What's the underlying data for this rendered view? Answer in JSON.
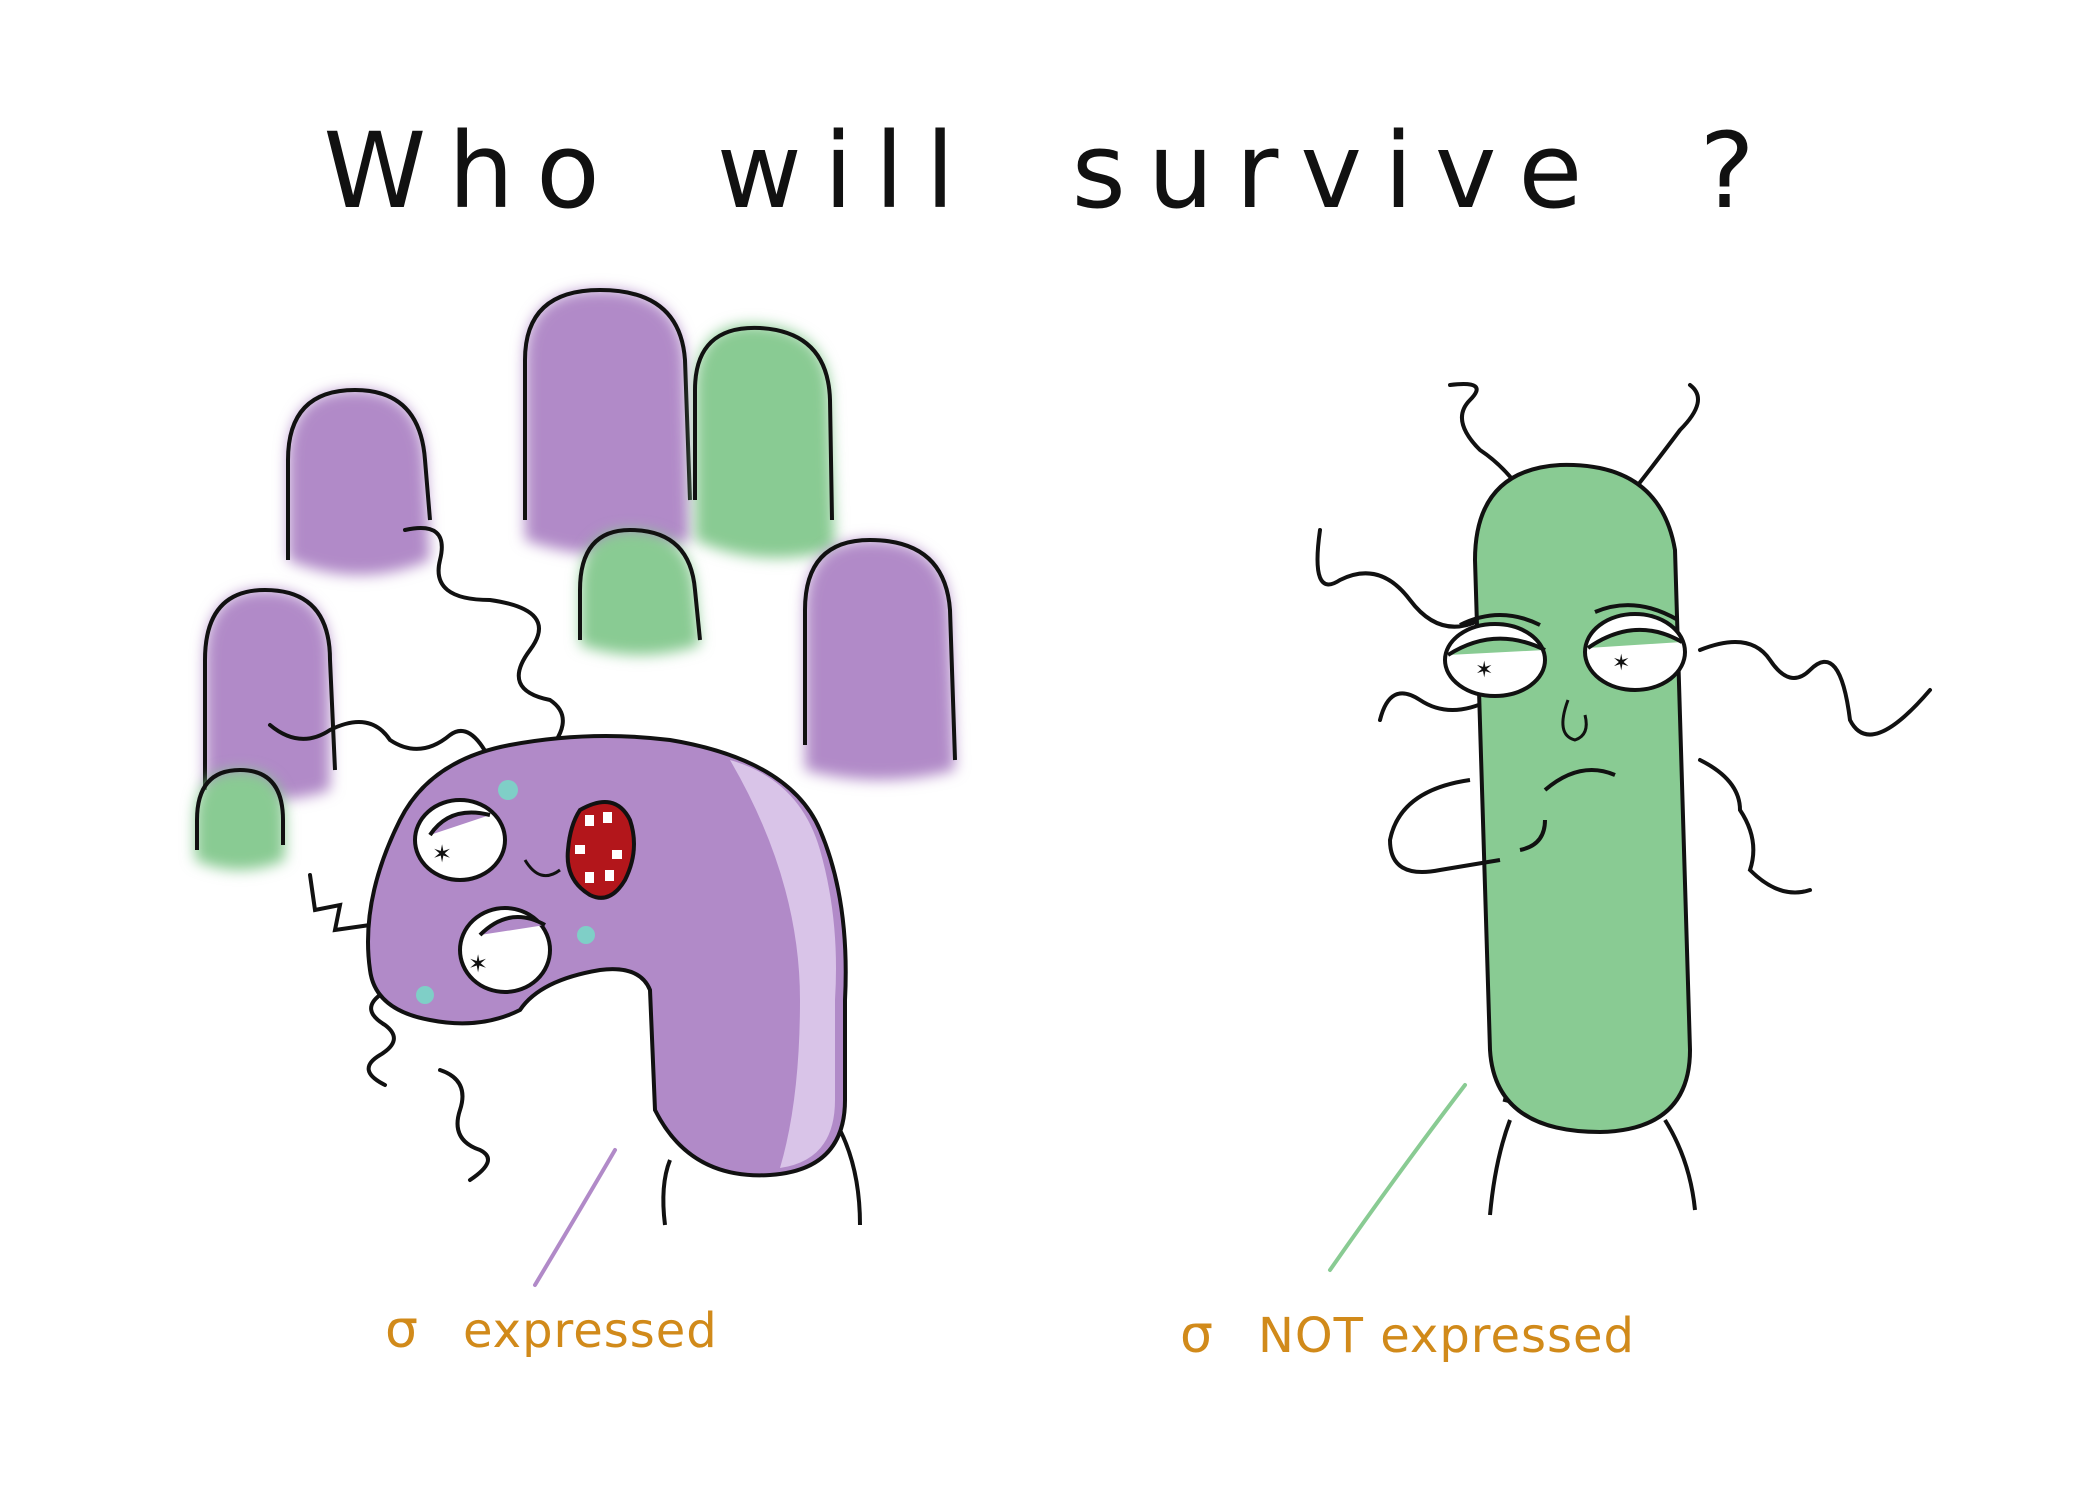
{
  "title": "Who will survive ?",
  "labels": {
    "left": {
      "symbol": "σ",
      "text": "expressed"
    },
    "right": {
      "symbol": "σ",
      "text": "NOT expressed"
    }
  },
  "colors": {
    "purple": "#b18ac8",
    "light_purple": "#d9c4e8",
    "green": "#89cb93",
    "dark_red": "#b3161b",
    "label_orange": "#d18a1a",
    "ink": "#111111"
  },
  "characters": [
    {
      "name": "purple-bacterium",
      "mood": "dead"
    },
    {
      "name": "green-bacterium",
      "mood": "smug"
    }
  ]
}
